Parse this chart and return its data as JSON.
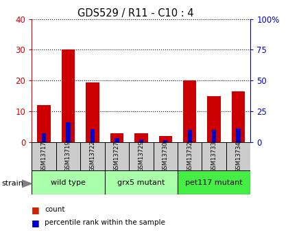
{
  "title": "GDS529 / R11 - C10 : 4",
  "samples": [
    "GSM13717",
    "GSM13719",
    "GSM13722",
    "GSM13727",
    "GSM13729",
    "GSM13730",
    "GSM13732",
    "GSM13733",
    "GSM13734"
  ],
  "counts": [
    12,
    30,
    19.5,
    3,
    3,
    2,
    20,
    15,
    16.5
  ],
  "percentiles": [
    7,
    16,
    10.5,
    3.5,
    2.5,
    1.5,
    10,
    10,
    11
  ],
  "groups": [
    {
      "label": "wild type",
      "start": 0,
      "end": 3,
      "color": "#aaffaa"
    },
    {
      "label": "grx5 mutant",
      "start": 3,
      "end": 6,
      "color": "#aaffaa"
    },
    {
      "label": "pet117 mutant",
      "start": 6,
      "end": 9,
      "color": "#44ee44"
    }
  ],
  "ylim_left": [
    0,
    40
  ],
  "ylim_right": [
    0,
    100
  ],
  "yticks_left": [
    0,
    10,
    20,
    30,
    40
  ],
  "yticks_right": [
    0,
    25,
    50,
    75,
    100
  ],
  "ytick_labels_right": [
    "0",
    "25",
    "50",
    "75",
    "100%"
  ],
  "left_color": "#cc0000",
  "right_color": "#0000cc",
  "legend_count_color": "#cc2200",
  "legend_pct_color": "#0000cc",
  "strain_label": "strain",
  "tick_bg_color": "#cccccc"
}
